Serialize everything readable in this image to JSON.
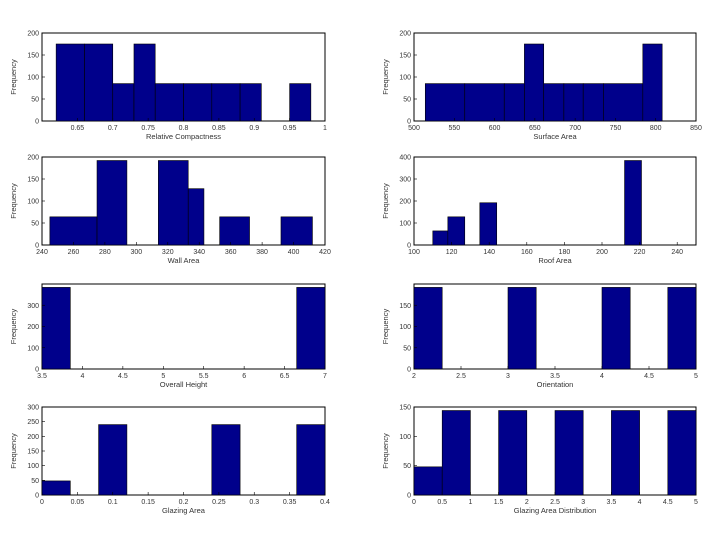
{
  "colors": {
    "bar": "#00008b",
    "background": "#ffffff",
    "axes": "#000000"
  },
  "chart_data": [
    {
      "type": "bar",
      "xlabel": "Relative Compactness",
      "ylabel": "Frequency",
      "xlim": [
        0.6,
        1.0
      ],
      "ylim": [
        0,
        200
      ],
      "x_ticks": [
        0.65,
        0.7,
        0.75,
        0.8,
        0.85,
        0.9,
        0.95,
        1.0
      ],
      "x_tick_labels": [
        "0.65",
        "0.7",
        "0.75",
        "0.8",
        "0.85",
        "0.9",
        "0.95",
        "1"
      ],
      "y_ticks": [
        0,
        50,
        100,
        150,
        200
      ],
      "y_tick_labels": [
        "0",
        "50",
        "100",
        "150",
        "200"
      ],
      "bins": [
        {
          "x0": 0.62,
          "x1": 0.66,
          "value": 175
        },
        {
          "x0": 0.66,
          "x1": 0.7,
          "value": 175
        },
        {
          "x0": 0.7,
          "x1": 0.73,
          "value": 85
        },
        {
          "x0": 0.73,
          "x1": 0.76,
          "value": 175
        },
        {
          "x0": 0.76,
          "x1": 0.8,
          "value": 85
        },
        {
          "x0": 0.8,
          "x1": 0.84,
          "value": 85
        },
        {
          "x0": 0.84,
          "x1": 0.88,
          "value": 85
        },
        {
          "x0": 0.88,
          "x1": 0.91,
          "value": 85
        },
        {
          "x0": 0.95,
          "x1": 0.98,
          "value": 85
        }
      ]
    },
    {
      "type": "bar",
      "xlabel": "Surface Area",
      "ylabel": "Frequency",
      "xlim": [
        500,
        850
      ],
      "ylim": [
        0,
        200
      ],
      "x_ticks": [
        500,
        550,
        600,
        650,
        700,
        750,
        800,
        850
      ],
      "x_tick_labels": [
        "500",
        "550",
        "600",
        "650",
        "700",
        "750",
        "800",
        "850"
      ],
      "y_ticks": [
        0,
        50,
        100,
        150,
        200
      ],
      "y_tick_labels": [
        "0",
        "50",
        "100",
        "150",
        "200"
      ],
      "bins": [
        {
          "x0": 514,
          "x1": 563,
          "value": 85
        },
        {
          "x0": 563,
          "x1": 612,
          "value": 85
        },
        {
          "x0": 612,
          "x1": 637,
          "value": 85
        },
        {
          "x0": 637,
          "x1": 661,
          "value": 175
        },
        {
          "x0": 661,
          "x1": 686,
          "value": 85
        },
        {
          "x0": 686,
          "x1": 710,
          "value": 85
        },
        {
          "x0": 710,
          "x1": 735,
          "value": 85
        },
        {
          "x0": 735,
          "x1": 784,
          "value": 85
        },
        {
          "x0": 784,
          "x1": 808,
          "value": 175
        }
      ]
    },
    {
      "type": "bar",
      "xlabel": "Wall Area",
      "ylabel": "Frequency",
      "xlim": [
        240,
        420
      ],
      "ylim": [
        0,
        200
      ],
      "x_ticks": [
        240,
        260,
        280,
        300,
        320,
        340,
        360,
        380,
        400,
        420
      ],
      "x_tick_labels": [
        "240",
        "260",
        "280",
        "300",
        "320",
        "340",
        "360",
        "380",
        "400",
        "420"
      ],
      "y_ticks": [
        0,
        50,
        100,
        150,
        200
      ],
      "y_tick_labels": [
        "0",
        "50",
        "100",
        "150",
        "200"
      ],
      "bins": [
        {
          "x0": 245,
          "x1": 275,
          "value": 64
        },
        {
          "x0": 275,
          "x1": 294,
          "value": 192
        },
        {
          "x0": 314,
          "x1": 333,
          "value": 192
        },
        {
          "x0": 333,
          "x1": 343,
          "value": 128
        },
        {
          "x0": 353,
          "x1": 372,
          "value": 64
        },
        {
          "x0": 392,
          "x1": 412,
          "value": 64
        }
      ]
    },
    {
      "type": "bar",
      "xlabel": "Roof Area",
      "ylabel": "Frequency",
      "xlim": [
        100,
        250
      ],
      "ylim": [
        0,
        400
      ],
      "x_ticks": [
        100,
        120,
        140,
        160,
        180,
        200,
        220,
        240
      ],
      "x_tick_labels": [
        "100",
        "120",
        "140",
        "160",
        "180",
        "200",
        "220",
        "240"
      ],
      "y_ticks": [
        0,
        100,
        200,
        300,
        400
      ],
      "y_tick_labels": [
        "0",
        "100",
        "200",
        "300",
        "400"
      ],
      "bins": [
        {
          "x0": 110,
          "x1": 118,
          "value": 64
        },
        {
          "x0": 118,
          "x1": 127,
          "value": 128
        },
        {
          "x0": 135,
          "x1": 144,
          "value": 192
        },
        {
          "x0": 212,
          "x1": 221,
          "value": 384
        }
      ]
    },
    {
      "type": "bar",
      "xlabel": "Overall Height",
      "ylabel": "Frequency",
      "xlim": [
        3.5,
        7
      ],
      "ylim": [
        0,
        400
      ],
      "x_ticks": [
        3.5,
        4,
        4.5,
        5,
        5.5,
        6,
        6.5,
        7
      ],
      "x_tick_labels": [
        "3.5",
        "4",
        "4.5",
        "5",
        "5.5",
        "6",
        "6.5",
        "7"
      ],
      "y_ticks": [
        0,
        100,
        200,
        300,
        400
      ],
      "y_tick_labels": [
        "0",
        "100",
        "200",
        "300",
        ""
      ],
      "bins": [
        {
          "x0": 3.5,
          "x1": 3.85,
          "value": 384
        },
        {
          "x0": 6.65,
          "x1": 7.0,
          "value": 384
        }
      ]
    },
    {
      "type": "bar",
      "xlabel": "Orientation",
      "ylabel": "Frequency",
      "xlim": [
        2,
        5
      ],
      "ylim": [
        0,
        200
      ],
      "x_ticks": [
        2,
        2.5,
        3,
        3.5,
        4,
        4.5,
        5
      ],
      "x_tick_labels": [
        "2",
        "2.5",
        "3",
        "3.5",
        "4",
        "4.5",
        "5"
      ],
      "y_ticks": [
        0,
        50,
        100,
        150,
        200
      ],
      "y_tick_labels": [
        "0",
        "50",
        "100",
        "150",
        ""
      ],
      "bins": [
        {
          "x0": 2.0,
          "x1": 2.3,
          "value": 192
        },
        {
          "x0": 3.0,
          "x1": 3.3,
          "value": 192
        },
        {
          "x0": 4.0,
          "x1": 4.3,
          "value": 192
        },
        {
          "x0": 4.7,
          "x1": 5.0,
          "value": 192
        }
      ]
    },
    {
      "type": "bar",
      "xlabel": "Glazing Area",
      "ylabel": "Frequency",
      "xlim": [
        0,
        0.4
      ],
      "ylim": [
        0,
        300
      ],
      "x_ticks": [
        0,
        0.05,
        0.1,
        0.15,
        0.2,
        0.25,
        0.3,
        0.35,
        0.4
      ],
      "x_tick_labels": [
        "0",
        "0.05",
        "0.1",
        "0.15",
        "0.2",
        "0.25",
        "0.3",
        "0.35",
        "0.4"
      ],
      "y_ticks": [
        0,
        50,
        100,
        150,
        200,
        250,
        300
      ],
      "y_tick_labels": [
        "0",
        "50",
        "100",
        "150",
        "200",
        "250",
        "300"
      ],
      "bins": [
        {
          "x0": 0.0,
          "x1": 0.04,
          "value": 48
        },
        {
          "x0": 0.08,
          "x1": 0.12,
          "value": 240
        },
        {
          "x0": 0.24,
          "x1": 0.28,
          "value": 240
        },
        {
          "x0": 0.36,
          "x1": 0.4,
          "value": 240
        }
      ]
    },
    {
      "type": "bar",
      "xlabel": "Glazing Area Distribution",
      "ylabel": "Frequency",
      "xlim": [
        0,
        5
      ],
      "ylim": [
        0,
        150
      ],
      "x_ticks": [
        0,
        0.5,
        1,
        1.5,
        2,
        2.5,
        3,
        3.5,
        4,
        4.5,
        5
      ],
      "x_tick_labels": [
        "0",
        "0.5",
        "1",
        "1.5",
        "2",
        "2.5",
        "3",
        "3.5",
        "4",
        "4.5",
        "5"
      ],
      "y_ticks": [
        0,
        50,
        100,
        150
      ],
      "y_tick_labels": [
        "0",
        "50",
        "100",
        "150"
      ],
      "bins": [
        {
          "x0": 0.0,
          "x1": 0.5,
          "value": 48
        },
        {
          "x0": 0.5,
          "x1": 1.0,
          "value": 144
        },
        {
          "x0": 1.5,
          "x1": 2.0,
          "value": 144
        },
        {
          "x0": 2.5,
          "x1": 3.0,
          "value": 144
        },
        {
          "x0": 3.5,
          "x1": 4.0,
          "value": 144
        },
        {
          "x0": 4.5,
          "x1": 5.0,
          "value": 144
        }
      ]
    }
  ]
}
